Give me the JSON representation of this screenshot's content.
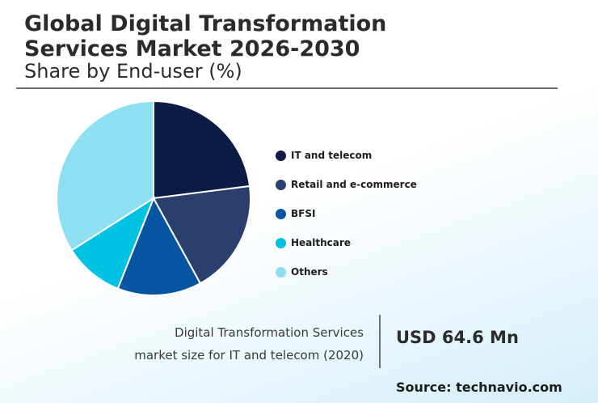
{
  "header": {
    "title_line1": "Global Digital Transformation",
    "title_line2": "Services Market 2026-2030",
    "subtitle": "Share by End-user (%)"
  },
  "chart_data": {
    "type": "pie",
    "title": "Global Digital Transformation Services Market 2026-2030",
    "subtitle": "Share by End-user (%)",
    "legend_position": "right",
    "slices": [
      {
        "label": "IT and telecom",
        "value": 23,
        "color": "#0b1d45"
      },
      {
        "label": "Retail and e-commerce",
        "value": 19,
        "color": "#2b3f6e"
      },
      {
        "label": "BFSI",
        "value": 14,
        "color": "#0755a2"
      },
      {
        "label": "Healthcare",
        "value": 10,
        "color": "#00c2e3"
      },
      {
        "label": "Others",
        "value": 34,
        "color": "#8ddff1"
      }
    ]
  },
  "footer": {
    "desc_line1": "Digital Transformation Services",
    "desc_line2": "market size for IT and telecom (2020)",
    "value": "USD 64.6 Mn",
    "source": "Source: technavio.com"
  }
}
